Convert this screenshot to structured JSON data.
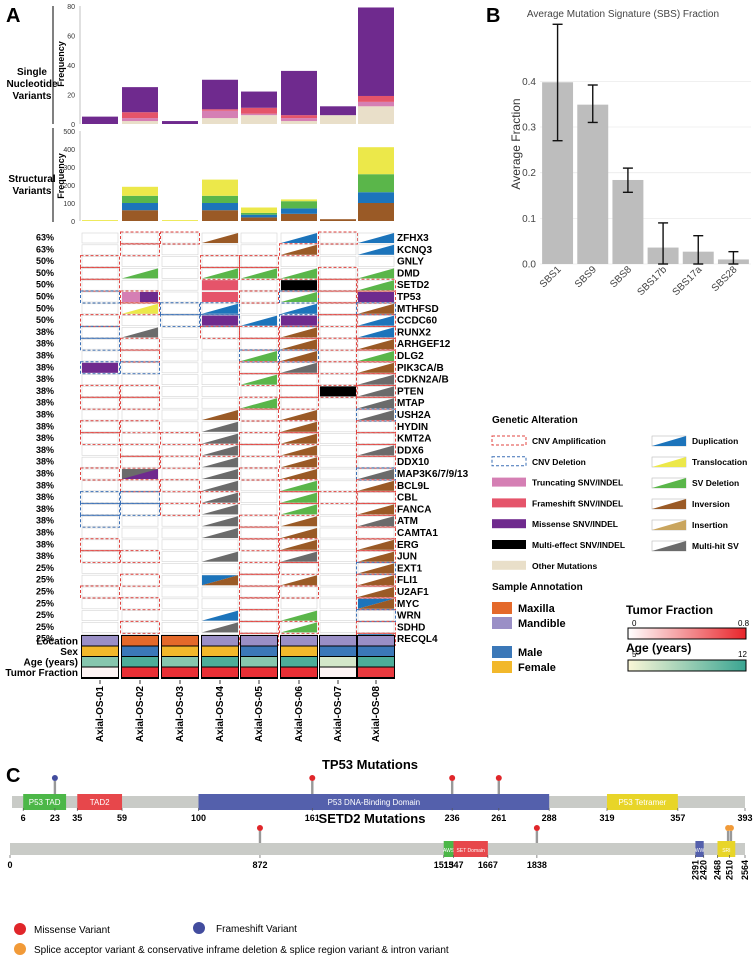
{
  "panels": {
    "a": "A",
    "b": "B",
    "c": "C"
  },
  "samples": [
    "Axial-OS-01",
    "Axial-OS-02",
    "Axial-OS-03",
    "Axial-OS-04",
    "Axial-OS-05",
    "Axial-OS-06",
    "Axial-OS-07",
    "Axial-OS-08"
  ],
  "snv_panel": {
    "row_label_lines": [
      "Single",
      "Nucleotide",
      "Variants"
    ],
    "y_label": "Frequency",
    "ylim": [
      0,
      80
    ],
    "ticks": [
      0,
      20,
      40,
      60,
      80
    ],
    "segments_order": [
      "other",
      "truncating",
      "frameshift",
      "missense"
    ],
    "stacks": [
      {
        "other": 0,
        "truncating": 0,
        "frameshift": 0,
        "missense": 5
      },
      {
        "other": 2,
        "truncating": 2,
        "frameshift": 4,
        "missense": 17
      },
      {
        "other": 0,
        "truncating": 0,
        "frameshift": 0,
        "missense": 2
      },
      {
        "other": 4,
        "truncating": 5,
        "frameshift": 1,
        "missense": 20
      },
      {
        "other": 6,
        "truncating": 1,
        "frameshift": 4,
        "missense": 11
      },
      {
        "other": 2,
        "truncating": 2,
        "frameshift": 2,
        "missense": 30
      },
      {
        "other": 6,
        "truncating": 0,
        "frameshift": 0,
        "missense": 6
      },
      {
        "other": 12,
        "truncating": 3,
        "frameshift": 4,
        "missense": 60
      }
    ]
  },
  "sv_panel": {
    "row_label_lines": [
      "Structural",
      "Variants"
    ],
    "y_label": "Frequency",
    "ylim": [
      0,
      500
    ],
    "ticks": [
      0,
      100,
      200,
      300,
      400,
      500
    ],
    "segments_order": [
      "inversion",
      "duplication",
      "deletion",
      "translocation"
    ],
    "stacks": [
      {
        "inversion": 0,
        "duplication": 0,
        "deletion": 0,
        "translocation": 5
      },
      {
        "inversion": 60,
        "duplication": 40,
        "deletion": 40,
        "translocation": 50
      },
      {
        "inversion": 0,
        "duplication": 0,
        "deletion": 0,
        "translocation": 5
      },
      {
        "inversion": 60,
        "duplication": 40,
        "deletion": 40,
        "translocation": 90
      },
      {
        "inversion": 20,
        "duplication": 15,
        "deletion": 10,
        "translocation": 30
      },
      {
        "inversion": 40,
        "duplication": 30,
        "deletion": 40,
        "translocation": 10
      },
      {
        "inversion": 10,
        "duplication": 0,
        "deletion": 0,
        "translocation": 0
      },
      {
        "inversion": 100,
        "duplication": 60,
        "deletion": 100,
        "translocation": 150
      }
    ]
  },
  "oncoprint": {
    "genes": [
      {
        "name": "ZFHX3",
        "pct": "63%"
      },
      {
        "name": "KCNQ3",
        "pct": "63%"
      },
      {
        "name": "GNLY",
        "pct": "50%"
      },
      {
        "name": "DMD",
        "pct": "50%"
      },
      {
        "name": "SETD2",
        "pct": "50%"
      },
      {
        "name": "TP53",
        "pct": "50%"
      },
      {
        "name": "MTHFSD",
        "pct": "50%"
      },
      {
        "name": "CCDC60",
        "pct": "50%"
      },
      {
        "name": "RUNX2",
        "pct": "38%"
      },
      {
        "name": "ARHGEF12",
        "pct": "38%"
      },
      {
        "name": "DLG2",
        "pct": "38%"
      },
      {
        "name": "PIK3CA/B",
        "pct": "38%"
      },
      {
        "name": "CDKN2A/B",
        "pct": "38%"
      },
      {
        "name": "PTEN",
        "pct": "38%"
      },
      {
        "name": "MTAP",
        "pct": "38%"
      },
      {
        "name": "USH2A",
        "pct": "38%"
      },
      {
        "name": "HYDIN",
        "pct": "38%"
      },
      {
        "name": "KMT2A",
        "pct": "38%"
      },
      {
        "name": "DDX6",
        "pct": "38%"
      },
      {
        "name": "DDX10",
        "pct": "38%"
      },
      {
        "name": "MAP3K6/7/9/13",
        "pct": "38%"
      },
      {
        "name": "BCL9L",
        "pct": "38%"
      },
      {
        "name": "CBL",
        "pct": "38%"
      },
      {
        "name": "FANCA",
        "pct": "38%"
      },
      {
        "name": "ATM",
        "pct": "38%"
      },
      {
        "name": "CAMTA1",
        "pct": "38%"
      },
      {
        "name": "ERG",
        "pct": "38%"
      },
      {
        "name": "JUN",
        "pct": "38%"
      },
      {
        "name": "EXT1",
        "pct": "25%"
      },
      {
        "name": "FLI1",
        "pct": "25%"
      },
      {
        "name": "U2AF1",
        "pct": "25%"
      },
      {
        "name": "MYC",
        "pct": "25%"
      },
      {
        "name": "WRN",
        "pct": "25%"
      },
      {
        "name": "SDHD",
        "pct": "25%"
      },
      {
        "name": "RECQL4",
        "pct": "25%"
      }
    ],
    "cells": {
      "0": {
        "2": "amp",
        "3": "amp",
        "4": "inv",
        "6": "dup",
        "7": "amp"
      },
      "1": {
        "0": "amp",
        "2": "amp",
        "6": "amp",
        "8": "dup"
      },
      "2": {
        "1": "amp",
        "4": "amp",
        "5": "amp"
      },
      "3": {
        "1": "amp",
        "4": "amp",
        "5": "amp",
        "7": "amp"
      },
      "4": {
        "1": "amp",
        "6": "amp",
        "7": "amp",
        "8": "amp"
      },
      "5": {
        "1": "del",
        "2": "amp",
        "5": "amp",
        "6": "del",
        "7": "amp",
        "8": "amp"
      },
      "6": {
        "2": "amp",
        "3": "del",
        "4": "del",
        "7": "amp",
        "8": "del"
      },
      "7": {
        "1": "amp",
        "3": "del",
        "4": "del",
        "6": "del",
        "7": "amp",
        "8": "amp"
      },
      "8": {
        "0": "amp",
        "1": "del",
        "4": "amp",
        "5": "amp",
        "6": "amp",
        "8": "amp"
      },
      "9": {
        "1": "del",
        "2": "amp",
        "5": "amp",
        "6": "amp",
        "7": "amp",
        "8": "amp"
      },
      "10": {
        "2": "amp",
        "5": "del",
        "6": "del",
        "8": "amp"
      },
      "11": {
        "1": "del",
        "2": "del",
        "5": "amp",
        "6": "amp",
        "7": "amp",
        "8": "amp"
      },
      "12": {
        "5": "amp",
        "6": "amp",
        "8": "amp"
      },
      "13": {
        "1": "amp",
        "2": "amp",
        "6": "amp",
        "7": "amp",
        "8": "amp"
      },
      "14": {
        "1": "amp",
        "2": "amp",
        "5": "amp",
        "6": "amp",
        "8": "amp"
      },
      "15": {
        "5": "amp",
        "8": "del"
      },
      "16": {
        "1": "amp",
        "2": "amp",
        "6": "amp",
        "8": "amp"
      },
      "17": {
        "1": "amp",
        "3": "amp",
        "5": "amp",
        "6": "amp",
        "8": "amp"
      },
      "18": {
        "2": "amp",
        "4": "amp",
        "5": "amp",
        "8": "amp"
      },
      "19": {
        "2": "amp",
        "3": "amp",
        "6": "amp",
        "8": "amp"
      },
      "20": {
        "1": "amp",
        "5": "amp",
        "8": "del"
      },
      "21": {
        "2": "amp",
        "3": "amp",
        "6": "amp",
        "8": "amp"
      },
      "22": {
        "1": "del",
        "2": "del",
        "4": "amp",
        "6": "amp",
        "7": "amp",
        "8": "amp"
      },
      "23": {
        "1": "del",
        "2": "del",
        "3": "amp",
        "6": "amp",
        "8": "amp"
      },
      "24": {
        "1": "del",
        "5": "amp",
        "8": "amp"
      },
      "25": {
        "5": "amp",
        "8": "amp"
      },
      "26": {
        "1": "amp",
        "5": "amp",
        "6": "amp",
        "8": "amp"
      },
      "27": {
        "1": "amp",
        "2": "amp",
        "6": "amp",
        "8": "amp"
      },
      "28": {
        "5": "amp",
        "6": "amp",
        "8": "del"
      },
      "29": {
        "2": "amp",
        "5": "amp",
        "8": "amp"
      },
      "30": {
        "1": "amp",
        "5": "amp",
        "6": "amp",
        "8": "amp"
      },
      "31": {
        "2": "amp",
        "5": "amp",
        "8": "amp"
      },
      "32": {
        "5": "amp",
        "8": "del"
      },
      "33": {
        "2": "amp",
        "5": "amp",
        "6": "amp",
        "8": "amp"
      },
      "34": {
        "5": "amp",
        "8": "amp"
      }
    },
    "fills": {
      "0": {
        "3": "inv",
        "5": "dup",
        "7": "dup"
      },
      "1": {
        "5": "inv",
        "7": "dup"
      },
      "3": {
        "1": "svdel",
        "3": "svdel",
        "4": "svdel",
        "5": "svdel",
        "7": "svdel"
      },
      "4": {
        "3": "frameshift",
        "5": "multi_snv",
        "7": "svdel"
      },
      "5": {
        "1": "trunc_mis",
        "3": "frameshift",
        "5": "svdel",
        "7": "missense"
      },
      "6": {
        "1": "trans",
        "3": "dup",
        "5": "dup",
        "7": "inv"
      },
      "7": {
        "3": "missense",
        "4": "dup",
        "5": "missense",
        "7": "dup"
      },
      "8": {
        "1": "multi",
        "5": "inv",
        "7": "dup"
      },
      "9": {
        "5": "inv",
        "7": "inv"
      },
      "10": {
        "4": "svdel",
        "5": "inv",
        "7": "svdel"
      },
      "11": {
        "0": "missense",
        "5": "multi",
        "7": "inv"
      },
      "12": {
        "4": "svdel",
        "7": "multi"
      },
      "13": {
        "6": "multi_snv",
        "7": "multi"
      },
      "14": {
        "4": "svdel",
        "7": "multi"
      },
      "15": {
        "3": "inv",
        "5": "inv",
        "7": "multi"
      },
      "16": {
        "3": "multi",
        "5": "inv"
      },
      "17": {
        "3": "multi",
        "5": "inv"
      },
      "18": {
        "3": "multi",
        "5": "inv",
        "7": "multi"
      },
      "19": {
        "3": "multi",
        "5": "inv"
      },
      "20": {
        "1": "multi_mis",
        "3": "multi",
        "5": "inv",
        "7": "multi"
      },
      "21": {
        "3": "multi",
        "5": "svdel",
        "7": "inv"
      },
      "22": {
        "3": "multi",
        "5": "svdel"
      },
      "23": {
        "3": "multi",
        "5": "svdel",
        "7": "inv"
      },
      "24": {
        "3": "multi",
        "5": "inv",
        "7": "multi"
      },
      "25": {
        "3": "multi",
        "5": "inv"
      },
      "26": {
        "5": "inv",
        "7": "inv"
      },
      "27": {
        "3": "multi",
        "5": "multi",
        "7": "inv"
      },
      "28": {
        "7": "inv"
      },
      "29": {
        "3": "dupinv",
        "5": "inv",
        "7": "inv"
      },
      "30": {
        "7": "inv"
      },
      "31": {
        "7": "dupinv"
      },
      "32": {
        "3": "dup",
        "5": "svdel"
      },
      "33": {
        "3": "multi",
        "5": "svdel"
      },
      "34": {
        "7": "dupinv"
      }
    },
    "annotations": {
      "labels": [
        "Location",
        "Sex",
        "Age (years)",
        "Tumor Fraction"
      ],
      "location": [
        "mandible",
        "maxilla",
        "maxilla",
        "mandible",
        "mandible",
        "mandible",
        "mandible",
        "mandible"
      ],
      "sex": [
        "female",
        "male",
        "female",
        "female",
        "male",
        "female",
        "male",
        "male"
      ],
      "age": [
        0.6,
        0.9,
        0.6,
        0.9,
        0.6,
        0.9,
        0.2,
        0.9
      ],
      "tumor_fraction": [
        0.05,
        0.95,
        0.95,
        0.95,
        0.95,
        0.95,
        0.05,
        0.9
      ]
    }
  },
  "legend": {
    "genetic_title": "Genetic Alteration",
    "items_left": [
      "CNV Amplification",
      "CNV Deletion",
      "Truncating SNV/INDEL",
      "Frameshift SNV/INDEL",
      "Missense SNV/INDEL",
      "Multi-effect SNV/INDEL",
      "Other Mutations"
    ],
    "items_right": [
      "Duplication",
      "Translocation",
      "SV Deletion",
      "Inversion",
      "Insertion",
      "Multi-hit SV"
    ],
    "sample_title": "Sample Annotation",
    "maxilla": "Maxilla",
    "mandible": "Mandible",
    "male": "Male",
    "female": "Female",
    "tumor_fraction_title": "Tumor Fraction",
    "tf_min": "0",
    "tf_max": "0.8",
    "age_title": "Age (years)",
    "age_min": "5",
    "age_max": "12"
  },
  "colors": {
    "amp": "#e0433f",
    "del": "#3a6fb5",
    "truncating": "#d57fb4",
    "frameshift": "#e5546a",
    "missense": "#6f2a8e",
    "multi_snv": "#000000",
    "other": "#e9dfc9",
    "duplication": "#1c74bb",
    "translocation": "#ece84a",
    "sv_deletion": "#5ab64a",
    "inversion": "#9a5a26",
    "insertion": "#c9a55e",
    "multi_sv": "#6b6b6b",
    "maxilla": "#e4692a",
    "mandible": "#9a8fc6",
    "male": "#3b78b8",
    "female": "#f2b82b",
    "sbs_bar": "#bdbdbd"
  },
  "chart_data": {
    "type": "bar",
    "title": "Average Mutation Signature (SBS) Fraction",
    "categories": [
      "SBS1",
      "SBS9",
      "SBS8",
      "SBS17b",
      "SBS17a",
      "SBS28"
    ],
    "values": [
      0.398,
      0.349,
      0.184,
      0.036,
      0.027,
      0.01
    ],
    "error_low": [
      0.27,
      0.31,
      0.157,
      0.0,
      0.0,
      0.0
    ],
    "error_high": [
      0.525,
      0.392,
      0.21,
      0.09,
      0.062,
      0.027
    ],
    "xlabel": "",
    "ylabel": "Average Fraction",
    "ylim": [
      0,
      0.53
    ],
    "yticks": [
      0.0,
      0.1,
      0.2,
      0.3,
      0.4
    ],
    "ytick_labels": [
      "0.0",
      "0.1",
      "0.2",
      "0.3",
      "0.4"
    ]
  },
  "tp53": {
    "title": "TP53 Mutations",
    "length": 393,
    "domains": [
      {
        "name": "P53 TAD",
        "start": 6,
        "end": 29,
        "color": "#4cb748"
      },
      {
        "name": "TAD2",
        "start": 35,
        "end": 59,
        "color": "#e7474b"
      },
      {
        "name": "P53 DNA-Binding Domain",
        "start": 100,
        "end": 288,
        "color": "#5460ac"
      },
      {
        "name": "P53 Tetramer",
        "start": 319,
        "end": 357,
        "color": "#e8d528"
      }
    ],
    "ticks": [
      "6",
      "23",
      "35",
      "59",
      "100",
      "161",
      "236",
      "261",
      "288",
      "319",
      "357",
      "393"
    ],
    "tick_pos": [
      6,
      23,
      35,
      59,
      100,
      161,
      236,
      261,
      288,
      319,
      357,
      393
    ],
    "mutations": [
      {
        "pos": 23,
        "type": "frameshift"
      },
      {
        "pos": 161,
        "type": "missense"
      },
      {
        "pos": 236,
        "type": "missense"
      },
      {
        "pos": 261,
        "type": "missense"
      }
    ]
  },
  "setd2": {
    "title": "SETD2 Mutations",
    "length": 2564,
    "domains": [
      {
        "name": "AWS",
        "start": 1513,
        "end": 1547,
        "color": "#4cb748"
      },
      {
        "name": "SET Domain",
        "start": 1547,
        "end": 1667,
        "color": "#e7474b"
      },
      {
        "name": "WW",
        "start": 2391,
        "end": 2420,
        "color": "#5460ac"
      },
      {
        "name": "SRI",
        "start": 2468,
        "end": 2530,
        "color": "#e8d528"
      }
    ],
    "ticks": [
      "0",
      "872",
      "1513",
      "1547",
      "1667",
      "1838",
      "2391",
      "2420",
      "2468",
      "2510",
      "2564"
    ],
    "tick_pos": [
      0,
      872,
      1513,
      1547,
      1667,
      1838,
      2391,
      2420,
      2468,
      2510,
      2564
    ],
    "mutations": [
      {
        "pos": 872,
        "type": "missense"
      },
      {
        "pos": 1838,
        "type": "missense"
      },
      {
        "pos": 2505,
        "type": "splice"
      },
      {
        "pos": 2515,
        "type": "splice"
      }
    ]
  },
  "lollipop_legend": {
    "missense": "Missense Variant",
    "frameshift": "Frameshift Variant",
    "splice": "Splice acceptor variant & conservative inframe deletion & splice region variant & intron variant"
  }
}
